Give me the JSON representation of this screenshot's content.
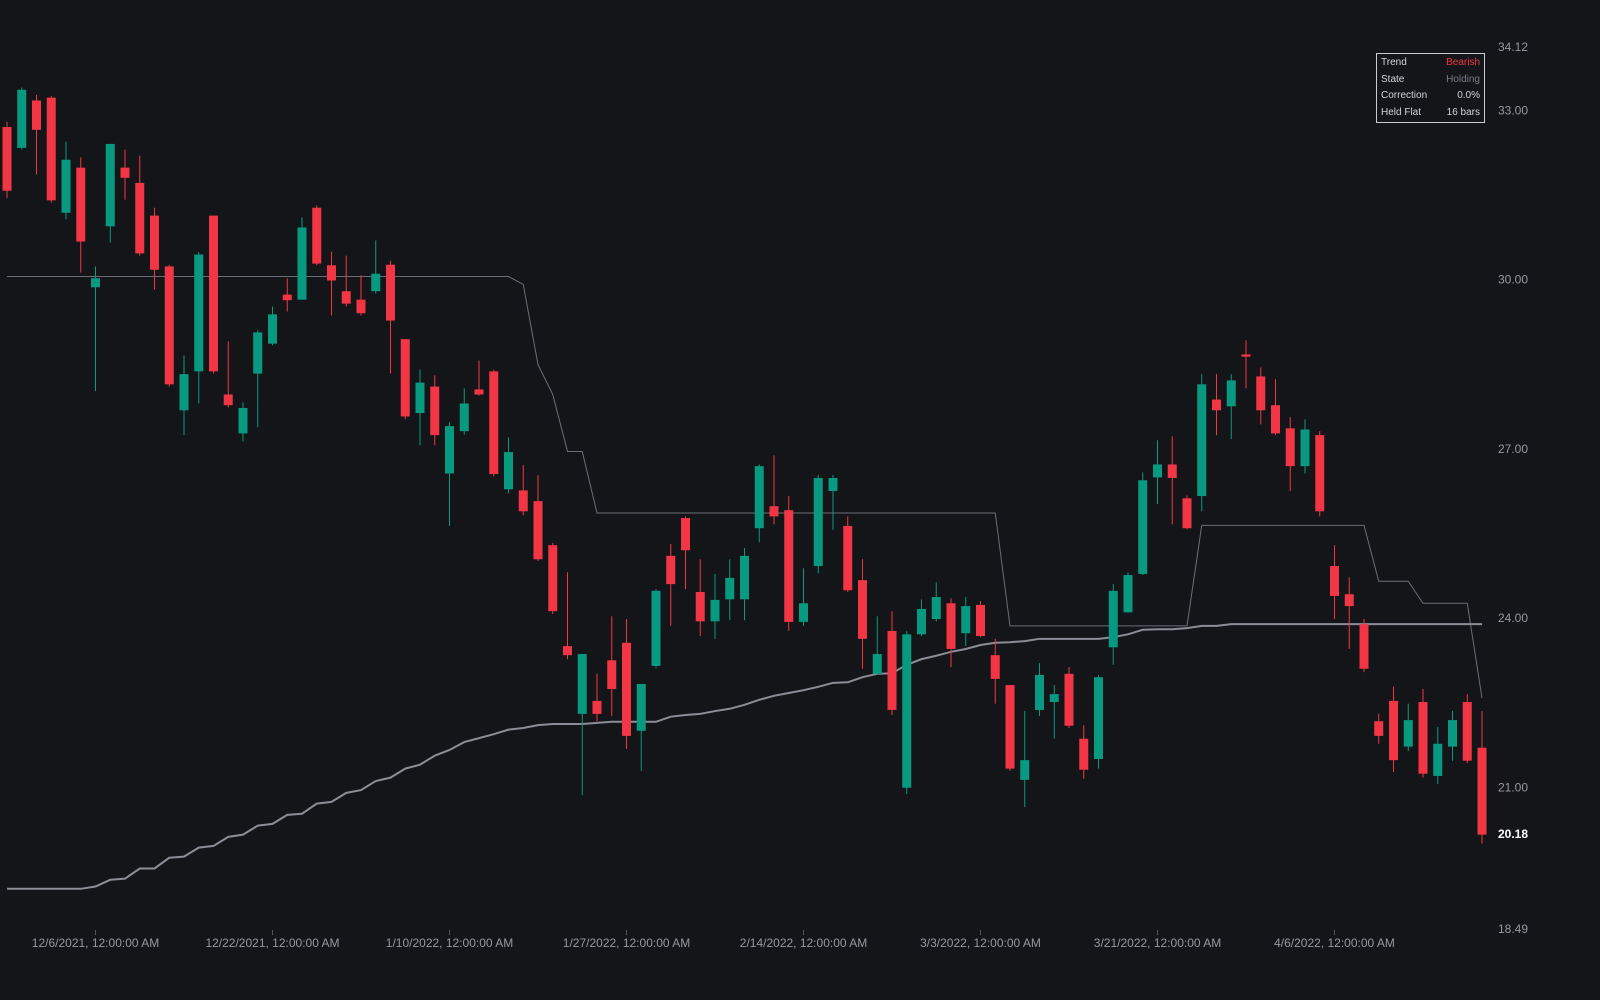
{
  "chart_data": {
    "type": "candlestick",
    "categories": [
      null,
      null,
      null,
      null,
      null,
      null,
      "12/6/2021, 12:00:00 AM",
      null,
      null,
      null,
      null,
      null,
      null,
      null,
      null,
      null,
      null,
      null,
      "12/22/2021, 12:00:00 AM",
      null,
      null,
      null,
      null,
      null,
      null,
      null,
      null,
      null,
      null,
      null,
      "1/10/2022, 12:00:00 AM",
      null,
      null,
      null,
      null,
      null,
      null,
      null,
      null,
      null,
      null,
      null,
      "1/27/2022, 12:00:00 AM",
      null,
      null,
      null,
      null,
      null,
      null,
      null,
      null,
      null,
      null,
      null,
      "2/14/2022, 12:00:00 AM",
      null,
      null,
      null,
      null,
      null,
      null,
      null,
      null,
      null,
      null,
      null,
      "3/3/2022, 12:00:00 AM",
      null,
      null,
      null,
      null,
      null,
      null,
      null,
      null,
      null,
      null,
      null,
      "3/21/2022, 12:00:00 AM",
      null,
      null,
      null,
      null,
      null,
      null,
      null,
      null,
      null,
      null,
      null,
      "4/6/2022, 12:00:00 AM",
      null,
      null,
      null,
      null,
      null,
      null,
      null,
      null,
      null,
      null
    ],
    "open": [
      32.72,
      32.35,
      33.19,
      33.24,
      31.2,
      32.0,
      29.88,
      30.96,
      32.0,
      31.73,
      31.15,
      30.25,
      27.7,
      28.39,
      31.15,
      27.98,
      27.29,
      28.35,
      28.88,
      29.75,
      29.66,
      31.29,
      30.27,
      29.81,
      29.66,
      29.81,
      30.28,
      28.96,
      27.65,
      28.12,
      26.58,
      27.33,
      28.07,
      28.39,
      26.3,
      26.28,
      26.09,
      25.31,
      23.52,
      22.32,
      22.55,
      23.27,
      23.58,
      22.02,
      23.17,
      25.12,
      25.79,
      24.48,
      23.96,
      24.35,
      24.35,
      25.61,
      26.0,
      25.93,
      23.95,
      24.94,
      26.27,
      25.65,
      24.69,
      23.03,
      23.79,
      21.01,
      23.73,
      24.0,
      24.28,
      23.75,
      24.25,
      23.36,
      22.83,
      21.15,
      22.39,
      22.53,
      23.03,
      21.88,
      21.52,
      23.5,
      24.12,
      24.8,
      26.51,
      26.74,
      26.14,
      26.18,
      27.89,
      27.77,
      28.69,
      28.3,
      27.79,
      27.38,
      26.71,
      27.26,
      24.94,
      24.44,
      23.91,
      22.19,
      22.55,
      21.74,
      22.53,
      21.22,
      21.74,
      22.53,
      21.72
    ],
    "high": [
      32.81,
      33.42,
      33.29,
      33.27,
      32.46,
      32.18,
      30.25,
      32.42,
      32.32,
      32.21,
      31.29,
      30.28,
      28.67,
      30.5,
      31.15,
      28.92,
      27.84,
      29.12,
      29.54,
      30.04,
      31.12,
      31.33,
      30.51,
      30.44,
      30.09,
      30.71,
      30.35,
      28.96,
      28.42,
      28.32,
      27.49,
      28.09,
      28.58,
      28.42,
      27.22,
      26.73,
      26.55,
      25.35,
      24.83,
      23.38,
      23.03,
      24.05,
      24.0,
      22.85,
      24.53,
      25.33,
      25.82,
      25.06,
      24.8,
      25.06,
      25.26,
      26.74,
      26.9,
      26.18,
      24.9,
      26.55,
      26.55,
      25.82,
      25.06,
      24.05,
      24.14,
      23.79,
      24.35,
      24.65,
      24.37,
      24.39,
      24.32,
      23.65,
      22.83,
      22.37,
      23.22,
      22.83,
      23.15,
      22.12,
      23.01,
      24.62,
      24.83,
      26.6,
      27.17,
      27.24,
      26.19,
      28.34,
      28.34,
      28.34,
      28.94,
      28.46,
      28.25,
      27.58,
      27.54,
      27.33,
      25.31,
      24.74,
      24.0,
      22.32,
      22.8,
      22.5,
      22.76,
      22.09,
      22.37,
      22.67,
      22.37
    ],
    "low": [
      31.46,
      32.32,
      31.88,
      31.38,
      31.08,
      30.14,
      28.04,
      30.67,
      31.43,
      30.44,
      29.84,
      28.12,
      27.26,
      27.82,
      28.35,
      27.75,
      27.15,
      27.4,
      28.85,
      29.45,
      29.66,
      30.27,
      29.38,
      29.54,
      29.38,
      29.77,
      28.35,
      27.54,
      27.08,
      27.08,
      25.65,
      27.27,
      27.96,
      26.53,
      26.23,
      25.84,
      25.03,
      24.09,
      23.29,
      20.88,
      22.19,
      22.28,
      21.7,
      21.31,
      23.13,
      23.88,
      24.53,
      23.7,
      23.65,
      23.98,
      23.98,
      25.36,
      25.68,
      23.79,
      23.88,
      24.81,
      25.58,
      24.48,
      23.12,
      23.01,
      22.3,
      20.9,
      23.7,
      23.96,
      23.15,
      23.52,
      23.68,
      22.5,
      21.31,
      20.67,
      22.28,
      21.88,
      22.07,
      21.17,
      21.35,
      23.19,
      24.11,
      24.78,
      26.04,
      25.68,
      25.59,
      25.91,
      27.26,
      27.19,
      28.09,
      27.45,
      27.26,
      26.27,
      26.58,
      25.82,
      24.0,
      23.47,
      23.06,
      21.79,
      21.29,
      21.66,
      21.19,
      21.08,
      21.49,
      21.45,
      20.02
    ],
    "close": [
      31.59,
      33.38,
      32.67,
      31.42,
      32.14,
      30.69,
      30.04,
      32.42,
      31.82,
      30.48,
      30.19,
      28.16,
      28.34,
      30.46,
      28.39,
      27.79,
      27.74,
      29.08,
      29.4,
      29.65,
      30.94,
      30.3,
      30.0,
      29.59,
      29.42,
      30.12,
      29.29,
      27.59,
      28.19,
      27.26,
      27.42,
      27.82,
      27.98,
      26.57,
      26.96,
      25.91,
      25.06,
      24.14,
      23.36,
      23.38,
      22.32,
      22.76,
      21.93,
      22.85,
      24.5,
      24.62,
      25.22,
      23.96,
      24.34,
      24.73,
      25.12,
      26.71,
      25.82,
      23.95,
      24.28,
      26.5,
      26.5,
      24.51,
      23.65,
      23.38,
      22.39,
      23.73,
      24.18,
      24.39,
      23.47,
      24.23,
      23.7,
      22.94,
      21.35,
      21.5,
      23.01,
      22.67,
      22.11,
      21.33,
      22.97,
      24.5,
      24.78,
      26.46,
      26.74,
      26.5,
      25.61,
      28.16,
      27.7,
      28.23,
      28.65,
      27.7,
      27.29,
      26.71,
      27.36,
      25.91,
      24.41,
      24.23,
      23.12,
      21.93,
      21.5,
      22.21,
      21.26,
      21.79,
      22.21,
      21.49,
      20.18
    ],
    "up_color": "#089981",
    "down_color": "#f23645",
    "lines": [
      {
        "color": "#6b6e78",
        "width": 1,
        "values": [
          30.07,
          30.07,
          30.07,
          30.07,
          30.07,
          30.07,
          30.07,
          30.07,
          30.07,
          30.07,
          30.07,
          30.07,
          30.07,
          30.07,
          30.07,
          30.07,
          30.07,
          30.07,
          30.07,
          30.07,
          30.07,
          30.07,
          30.07,
          30.07,
          30.07,
          30.07,
          30.07,
          30.07,
          30.07,
          30.07,
          30.07,
          30.07,
          30.07,
          30.07,
          30.07,
          29.93,
          28.51,
          27.98,
          26.97,
          26.97,
          25.88,
          25.88,
          25.88,
          25.88,
          25.88,
          25.88,
          25.88,
          25.88,
          25.88,
          25.88,
          25.88,
          25.88,
          25.88,
          25.88,
          25.88,
          25.88,
          25.88,
          25.88,
          25.88,
          25.88,
          25.88,
          25.88,
          25.88,
          25.88,
          25.88,
          25.88,
          25.88,
          25.88,
          23.88,
          23.88,
          23.88,
          23.88,
          23.88,
          23.88,
          23.88,
          23.88,
          23.88,
          23.88,
          23.88,
          23.88,
          23.88,
          25.66,
          25.66,
          25.66,
          25.66,
          25.66,
          25.66,
          25.66,
          25.66,
          25.66,
          25.66,
          25.66,
          25.66,
          24.67,
          24.67,
          24.67,
          24.28,
          24.28,
          24.28,
          24.28,
          22.6
        ]
      },
      {
        "color": "#8b8e97",
        "width": 2,
        "values": [
          19.22,
          19.22,
          19.22,
          19.22,
          19.22,
          19.22,
          19.26,
          19.38,
          19.4,
          19.58,
          19.58,
          19.77,
          19.79,
          19.95,
          19.98,
          20.14,
          20.18,
          20.34,
          20.37,
          20.53,
          20.55,
          20.73,
          20.76,
          20.92,
          20.97,
          21.13,
          21.19,
          21.35,
          21.42,
          21.58,
          21.68,
          21.82,
          21.89,
          21.96,
          22.04,
          22.07,
          22.12,
          22.14,
          22.14,
          22.14,
          22.16,
          22.18,
          22.18,
          22.18,
          22.18,
          22.27,
          22.3,
          22.32,
          22.37,
          22.41,
          22.48,
          22.57,
          22.64,
          22.69,
          22.74,
          22.8,
          22.87,
          22.88,
          22.97,
          23.03,
          23.04,
          23.19,
          23.29,
          23.35,
          23.42,
          23.47,
          23.54,
          23.58,
          23.59,
          23.61,
          23.65,
          23.65,
          23.65,
          23.65,
          23.65,
          23.68,
          23.73,
          23.81,
          23.82,
          23.82,
          23.84,
          23.88,
          23.88,
          23.91,
          23.91,
          23.91,
          23.91,
          23.91,
          23.91,
          23.91,
          23.91,
          23.91,
          23.91,
          23.91,
          23.91,
          23.91,
          23.91,
          23.91,
          23.91,
          23.91,
          23.91
        ]
      }
    ],
    "ylim": [
      18.49,
      34.12
    ],
    "yticks": [
      34.12,
      {
        "value": 33,
        "label": "33.00"
      },
      {
        "value": 30,
        "label": "30.00"
      },
      {
        "value": 27,
        "label": "27.00"
      },
      {
        "value": 24,
        "label": "24.00"
      },
      {
        "value": 21,
        "label": "21.00"
      },
      18.49
    ],
    "grid": false,
    "table": [
      {
        "label": "Trend",
        "value": "Bearish",
        "color": "#f23645"
      },
      {
        "label": "State",
        "value": "Holding",
        "color": "#787b86"
      },
      {
        "label": "Correction",
        "value": "0.0%",
        "color": "#d1d4dc"
      },
      {
        "label": "Held Flat",
        "value": "16 bars",
        "color": "#d1d4dc"
      }
    ]
  }
}
